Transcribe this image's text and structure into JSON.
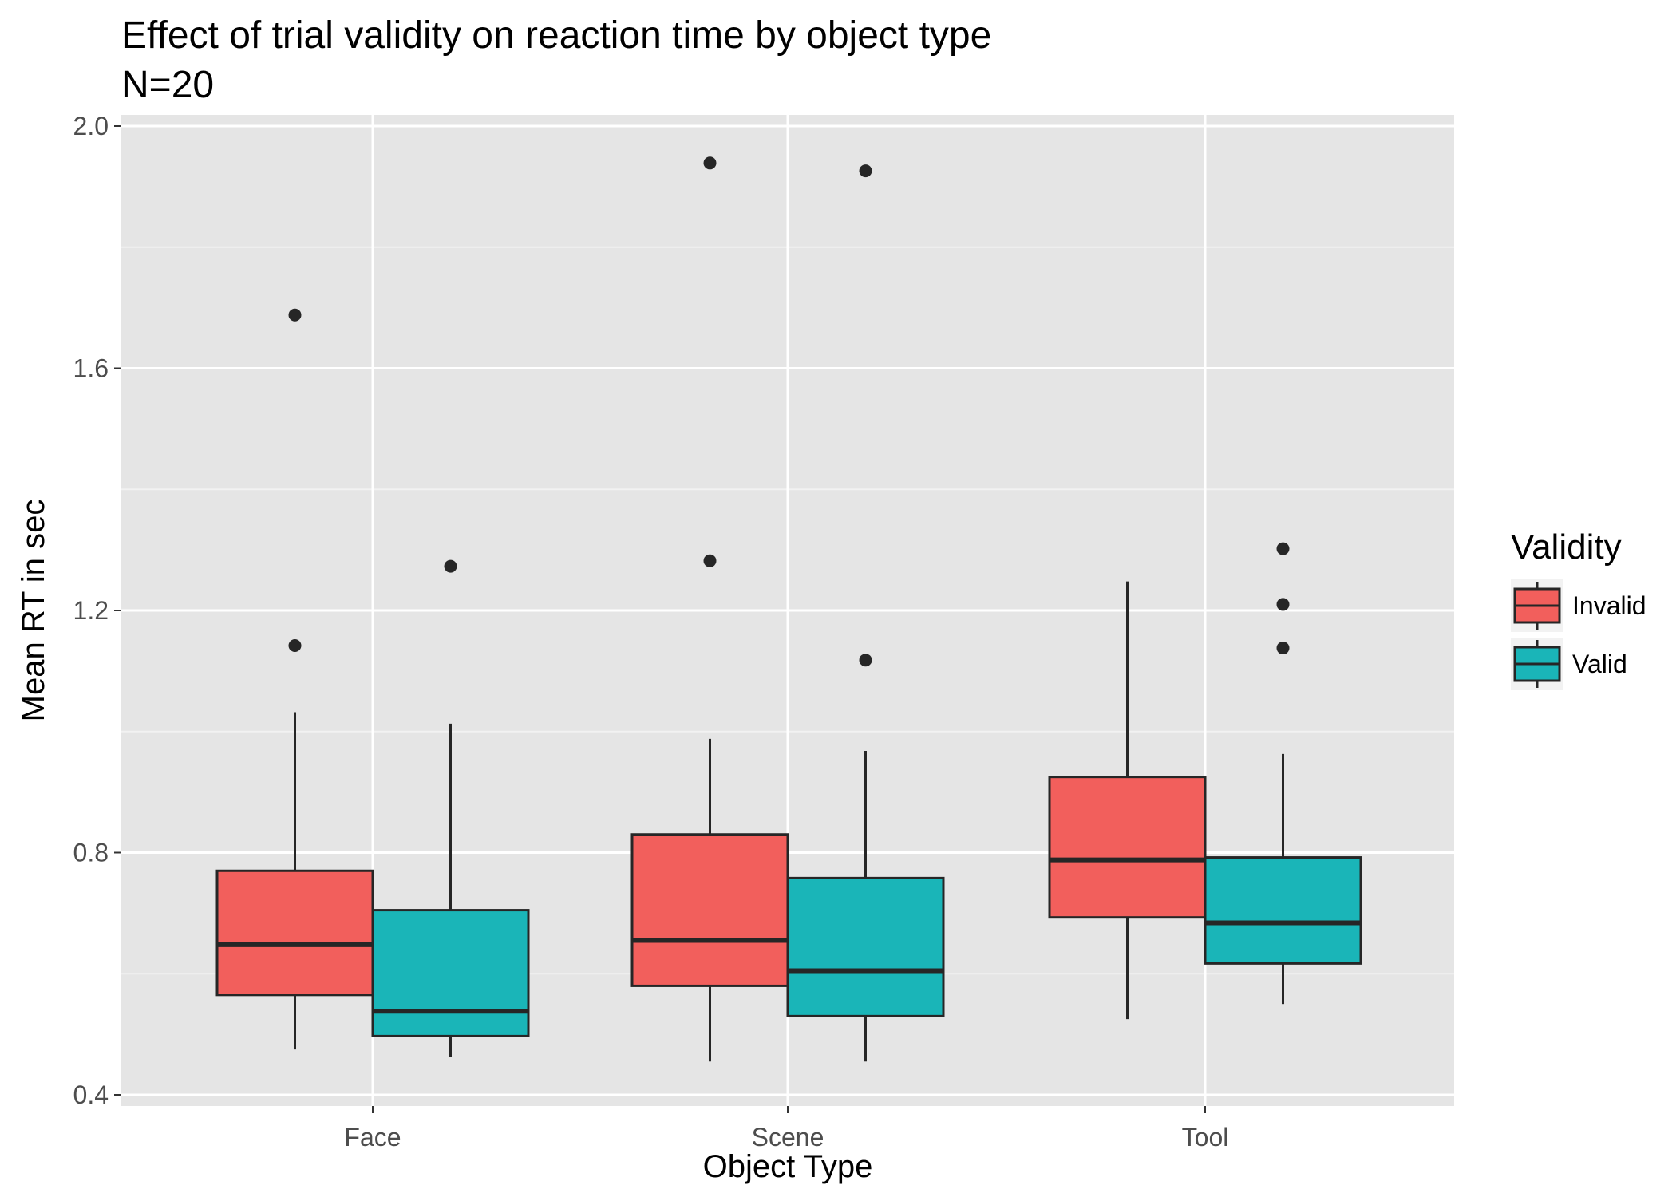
{
  "chart_data": {
    "type": "boxplot",
    "title": "Effect of trial validity on reaction time by object type",
    "subtitle": "N=20",
    "xlabel": "Object Type",
    "ylabel": "Mean RT in sec",
    "categories": [
      "Face",
      "Scene",
      "Tool"
    ],
    "y_ticks": [
      0.4,
      0.8,
      1.2,
      1.6,
      2.0
    ],
    "y_tick_labels": [
      "0.4",
      "0.8",
      "1.2",
      "1.6",
      "2.0"
    ],
    "ylim": [
      0.375,
      2.03
    ],
    "grid": true,
    "legend": {
      "title": "Validity",
      "position": "right"
    },
    "series": [
      {
        "name": "Invalid",
        "color": "#F25F5C",
        "boxes": [
          {
            "category": "Face",
            "lower_whisker": 0.475,
            "q1": 0.565,
            "median": 0.648,
            "q3": 0.77,
            "upper_whisker": 1.032,
            "outliers": [
              1.142,
              1.688
            ]
          },
          {
            "category": "Scene",
            "lower_whisker": 0.455,
            "q1": 0.58,
            "median": 0.655,
            "q3": 0.83,
            "upper_whisker": 0.988,
            "outliers": [
              1.282,
              1.939
            ]
          },
          {
            "category": "Tool",
            "lower_whisker": 0.525,
            "q1": 0.693,
            "median": 0.788,
            "q3": 0.925,
            "upper_whisker": 1.248,
            "outliers": []
          }
        ]
      },
      {
        "name": "Valid",
        "color": "#1AB5B8",
        "boxes": [
          {
            "category": "Face",
            "lower_whisker": 0.462,
            "q1": 0.497,
            "median": 0.538,
            "q3": 0.705,
            "upper_whisker": 1.013,
            "outliers": [
              1.273
            ]
          },
          {
            "category": "Scene",
            "lower_whisker": 0.455,
            "q1": 0.53,
            "median": 0.605,
            "q3": 0.758,
            "upper_whisker": 0.968,
            "outliers": [
              1.118,
              1.926
            ]
          },
          {
            "category": "Tool",
            "lower_whisker": 0.55,
            "q1": 0.617,
            "median": 0.684,
            "q3": 0.792,
            "upper_whisker": 0.963,
            "outliers": [
              1.138,
              1.21,
              1.302
            ]
          }
        ]
      }
    ]
  }
}
